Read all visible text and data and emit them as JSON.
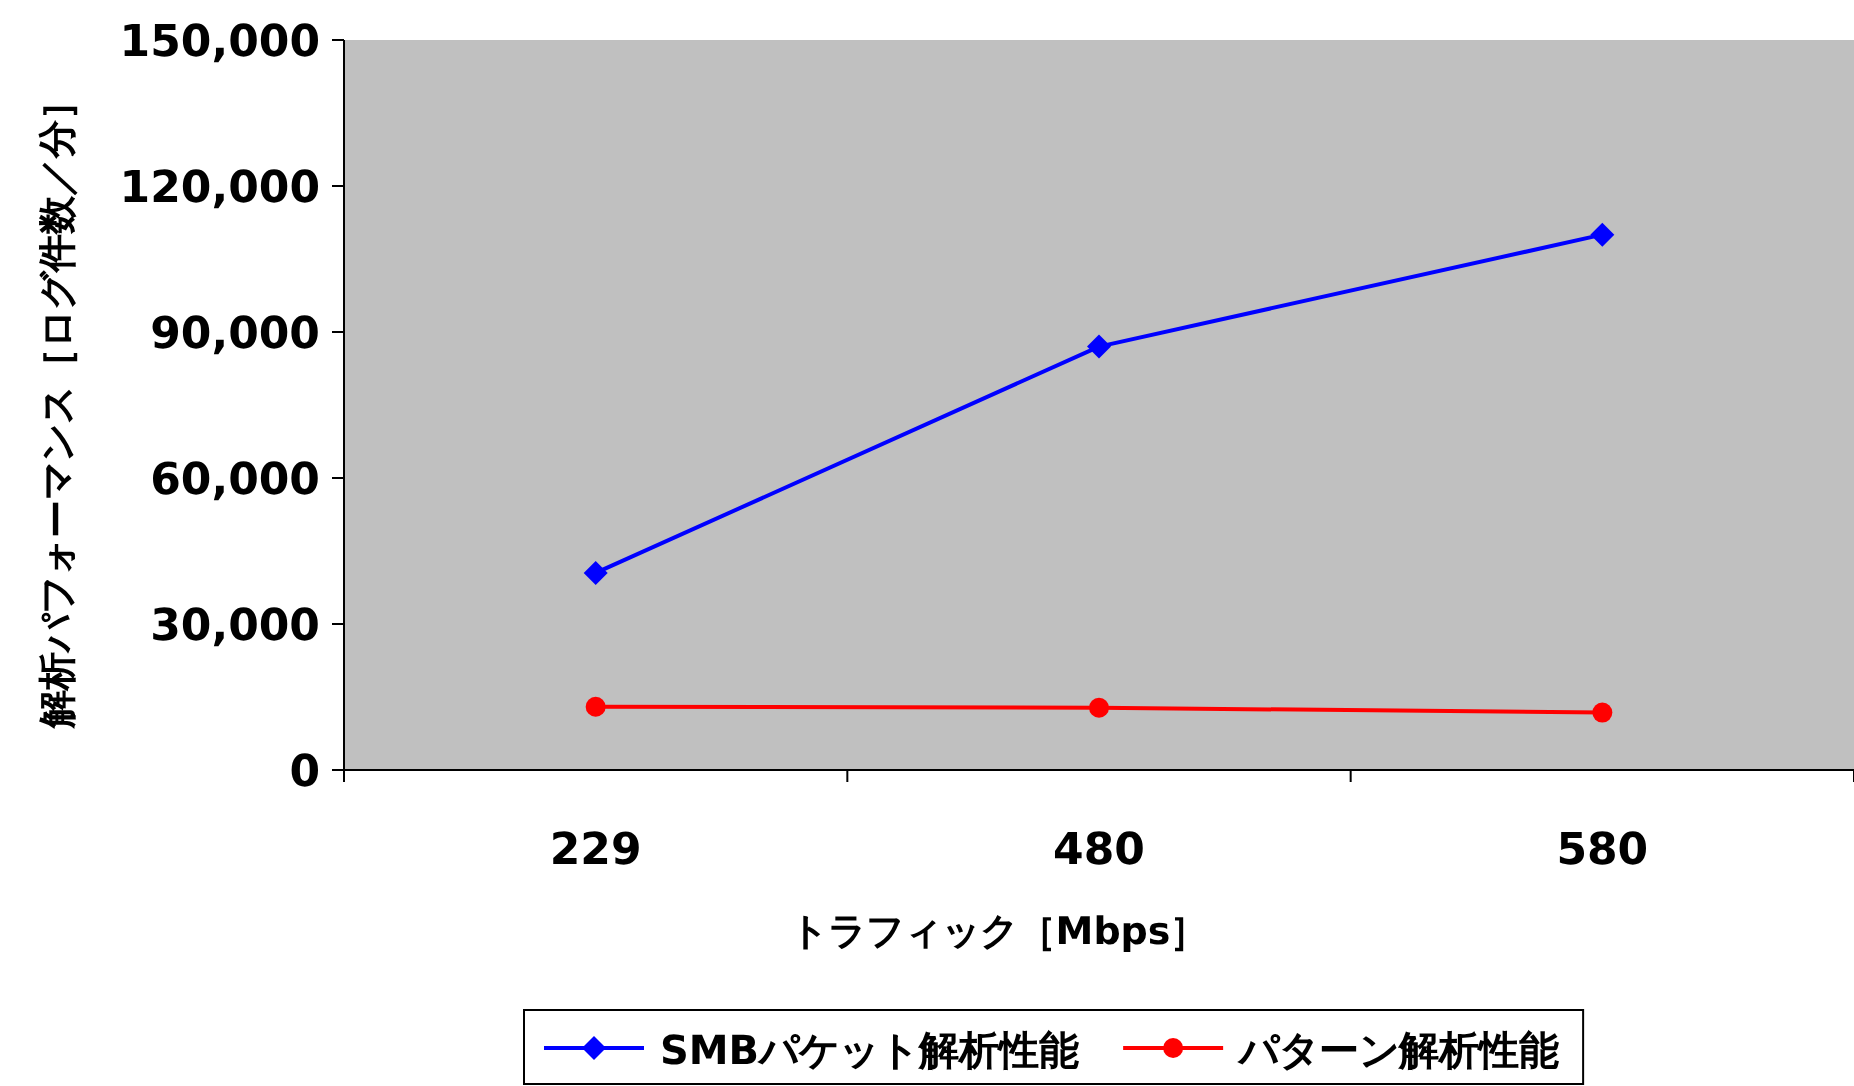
{
  "chart_data": {
    "type": "line",
    "xlabel": "トラフィック［Mbps］",
    "ylabel": "解析パフォーマンス［ログ件数／分］",
    "categories": [
      "229",
      "480",
      "580"
    ],
    "ylim": [
      0,
      150000
    ],
    "yticks": [
      {
        "value": 0,
        "label": "0"
      },
      {
        "value": 30000,
        "label": "30,000"
      },
      {
        "value": 60000,
        "label": "60,000"
      },
      {
        "value": 90000,
        "label": "90,000"
      },
      {
        "value": 120000,
        "label": "120,000"
      },
      {
        "value": 150000,
        "label": "150,000"
      }
    ],
    "grid": false,
    "legend": "bottom",
    "series": [
      {
        "name": "SMBパケット解析性能",
        "color": "#0000ff",
        "marker": "diamond",
        "values": [
          40500,
          87000,
          110000
        ]
      },
      {
        "name": "パターン解析性能",
        "color": "#ff0000",
        "marker": "circle",
        "values": [
          13000,
          12800,
          11800
        ]
      }
    ]
  }
}
